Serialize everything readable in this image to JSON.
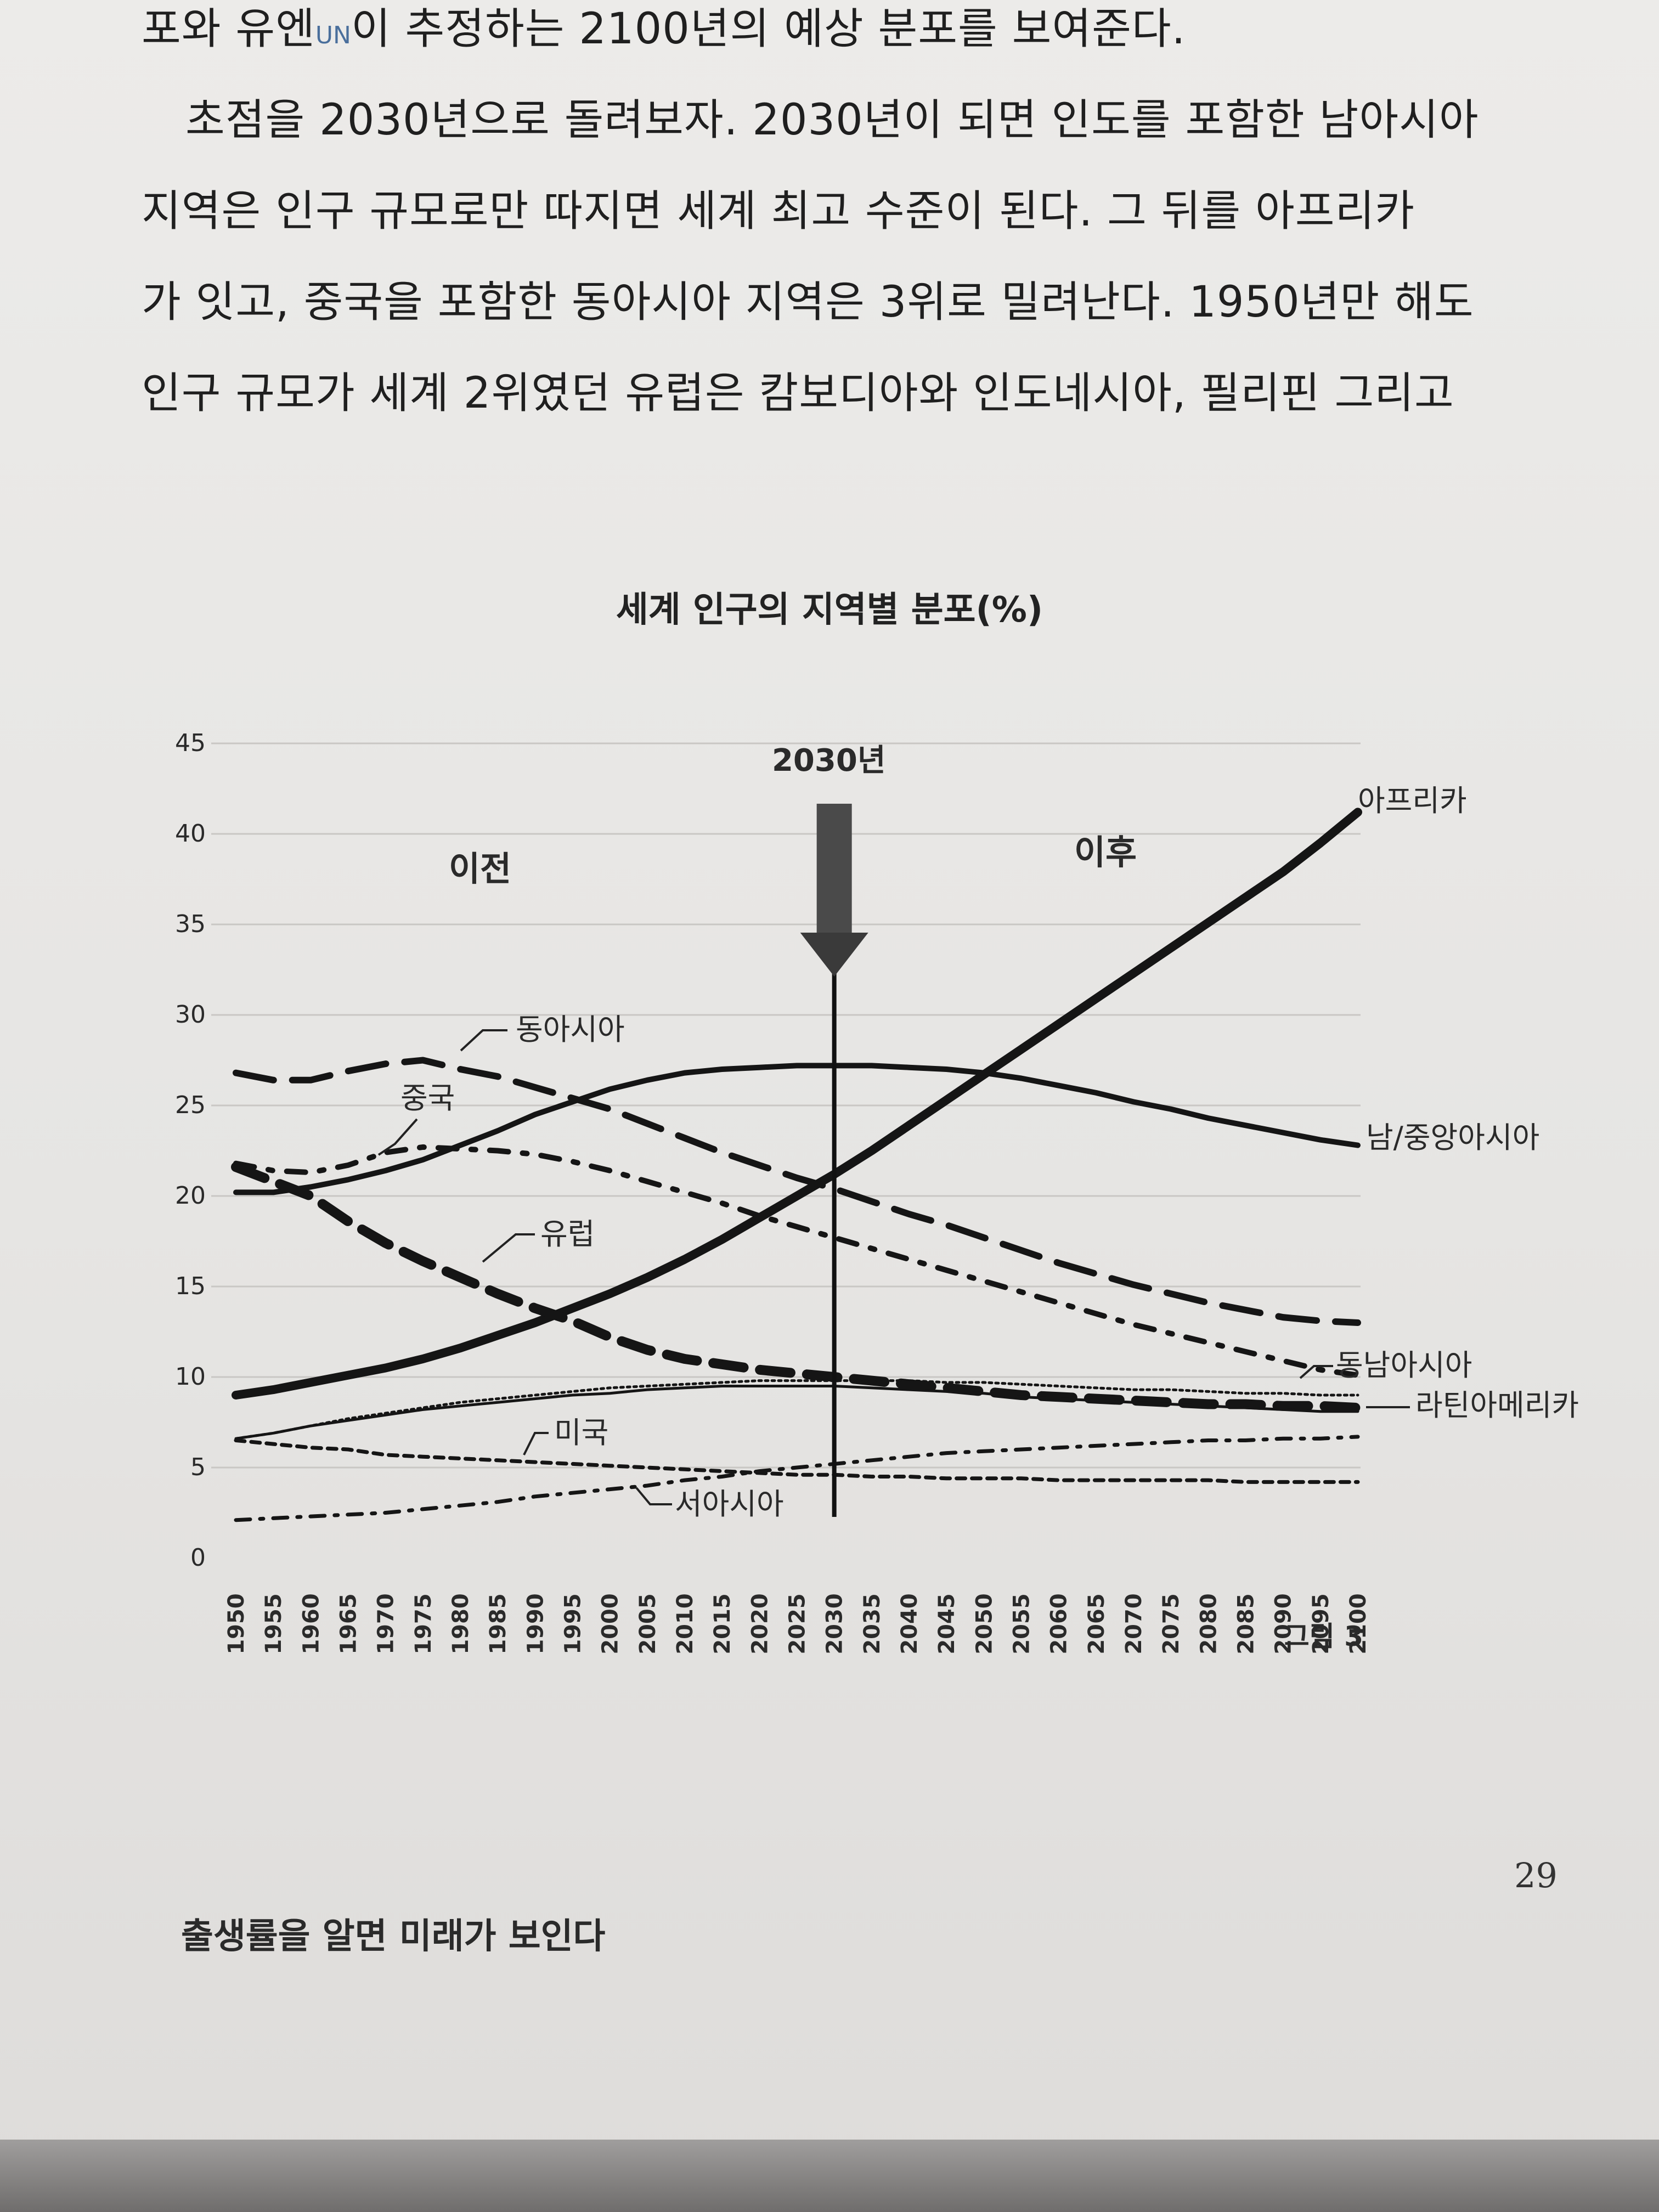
{
  "body_text": {
    "line1_a": "포와 유엔",
    "line1_un": "UN",
    "line1_b": "이 추정하는 2100년의 예상 분포를 보여준다.",
    "line2": "초점을 2030년으로 돌려보자. 2030년이 되면 인도를 포함한 남아시아",
    "line3": "지역은 인구 규모로만 따지면 세계 최고 수준이 된다. 그 뒤를 아프리카",
    "line4": "가 잇고, 중국을 포함한 동아시아 지역은 3위로 밀려난다. 1950년만 해도",
    "line5": "인구 규모가 세계 2위였던 유럽은 캄보디아와 인도네시아, 필리핀 그리고"
  },
  "chart_data": {
    "type": "line",
    "title": "세계 인구의 지역별 분포(%)",
    "ylim": [
      0,
      45
    ],
    "yticks": [
      "0",
      "5",
      "10",
      "15",
      "20",
      "25",
      "30",
      "35",
      "40",
      "45"
    ],
    "x": [
      1950,
      1955,
      1960,
      1965,
      1970,
      1975,
      1980,
      1985,
      1990,
      1995,
      2000,
      2005,
      2010,
      2015,
      2020,
      2025,
      2030,
      2035,
      2040,
      2045,
      2050,
      2055,
      2060,
      2065,
      2070,
      2075,
      2080,
      2085,
      2090,
      2095,
      2100
    ],
    "xtick_labels": [
      "1950",
      "1955",
      "1960",
      "1965",
      "1970",
      "1975",
      "1980",
      "1985",
      "1990",
      "1995",
      "2000",
      "2005",
      "2010",
      "2015",
      "2020",
      "2025",
      "2030",
      "2035",
      "2040",
      "2045",
      "2050",
      "2055",
      "2060",
      "2065",
      "2070",
      "2075",
      "2080",
      "2085",
      "2090",
      "2095",
      "2100"
    ],
    "marker_year": 2030,
    "marker_label": "2030년",
    "before_label": "이전",
    "after_label": "이후",
    "figure_label": "그림 3",
    "series": [
      {
        "name": "아프리카",
        "style": "solid-thick",
        "values": [
          9.0,
          9.3,
          9.7,
          10.1,
          10.5,
          11.0,
          11.6,
          12.3,
          13.0,
          13.8,
          14.6,
          15.5,
          16.5,
          17.6,
          18.8,
          20.0,
          21.2,
          22.5,
          23.9,
          25.3,
          26.7,
          28.1,
          29.5,
          30.9,
          32.3,
          33.7,
          35.1,
          36.5,
          37.9,
          39.5,
          41.2
        ]
      },
      {
        "name": "남/중앙아시아",
        "style": "solid",
        "values": [
          20.2,
          20.2,
          20.5,
          20.9,
          21.4,
          22.0,
          22.8,
          23.6,
          24.5,
          25.2,
          25.9,
          26.4,
          26.8,
          27.0,
          27.1,
          27.2,
          27.2,
          27.2,
          27.1,
          27.0,
          26.8,
          26.5,
          26.1,
          25.7,
          25.2,
          24.8,
          24.3,
          23.9,
          23.5,
          23.1,
          22.8
        ]
      },
      {
        "name": "동아시아",
        "style": "dash-long",
        "values": [
          26.8,
          26.4,
          26.4,
          26.9,
          27.3,
          27.5,
          27.0,
          26.6,
          26.0,
          25.4,
          24.8,
          24.0,
          23.2,
          22.4,
          21.7,
          21.0,
          20.4,
          19.7,
          19.0,
          18.4,
          17.7,
          17.0,
          16.3,
          15.7,
          15.1,
          14.6,
          14.1,
          13.7,
          13.3,
          13.1,
          13.0
        ]
      },
      {
        "name": "중국",
        "style": "dash-dot",
        "values": [
          21.8,
          21.4,
          21.3,
          21.7,
          22.4,
          22.7,
          22.6,
          22.5,
          22.3,
          21.9,
          21.4,
          20.8,
          20.2,
          19.6,
          18.9,
          18.3,
          17.7,
          17.1,
          16.5,
          15.9,
          15.3,
          14.7,
          14.1,
          13.5,
          12.9,
          12.4,
          11.9,
          11.4,
          10.9,
          10.4,
          10.1
        ]
      },
      {
        "name": "유럽",
        "style": "dash-thick",
        "values": [
          21.6,
          20.8,
          20.0,
          18.6,
          17.4,
          16.4,
          15.5,
          14.6,
          13.8,
          13.1,
          12.2,
          11.5,
          11.0,
          10.7,
          10.4,
          10.2,
          10.0,
          9.8,
          9.6,
          9.4,
          9.2,
          9.0,
          8.9,
          8.8,
          8.7,
          8.6,
          8.5,
          8.5,
          8.4,
          8.4,
          8.3
        ]
      },
      {
        "name": "동남아시아",
        "style": "dotted",
        "values": [
          6.6,
          6.9,
          7.3,
          7.7,
          8.0,
          8.3,
          8.6,
          8.8,
          9.0,
          9.2,
          9.4,
          9.5,
          9.6,
          9.7,
          9.8,
          9.8,
          9.8,
          9.8,
          9.8,
          9.7,
          9.7,
          9.6,
          9.5,
          9.4,
          9.3,
          9.3,
          9.2,
          9.1,
          9.1,
          9.0,
          9.0
        ]
      },
      {
        "name": "라틴아메리카",
        "style": "solid-thin",
        "values": [
          6.6,
          6.9,
          7.3,
          7.6,
          7.9,
          8.2,
          8.4,
          8.6,
          8.8,
          9.0,
          9.1,
          9.3,
          9.4,
          9.5,
          9.5,
          9.5,
          9.5,
          9.4,
          9.3,
          9.2,
          9.1,
          8.9,
          8.8,
          8.7,
          8.6,
          8.5,
          8.4,
          8.3,
          8.2,
          8.1,
          8.1
        ]
      },
      {
        "name": "미국",
        "style": "dash-small",
        "values": [
          6.5,
          6.3,
          6.1,
          6.0,
          5.7,
          5.6,
          5.5,
          5.4,
          5.3,
          5.2,
          5.1,
          5.0,
          4.9,
          4.8,
          4.7,
          4.6,
          4.6,
          4.5,
          4.5,
          4.4,
          4.4,
          4.4,
          4.3,
          4.3,
          4.3,
          4.3,
          4.3,
          4.2,
          4.2,
          4.2,
          4.2
        ]
      },
      {
        "name": "서아시아",
        "style": "dash-dot-light",
        "values": [
          2.1,
          2.2,
          2.3,
          2.4,
          2.5,
          2.7,
          2.9,
          3.1,
          3.4,
          3.6,
          3.8,
          4.0,
          4.3,
          4.5,
          4.8,
          5.0,
          5.2,
          5.4,
          5.6,
          5.8,
          5.9,
          6.0,
          6.1,
          6.2,
          6.3,
          6.4,
          6.5,
          6.5,
          6.6,
          6.6,
          6.7
        ]
      }
    ]
  },
  "footer": {
    "page_number": "29",
    "book_title": "출생률을 알면 미래가 보인다"
  }
}
